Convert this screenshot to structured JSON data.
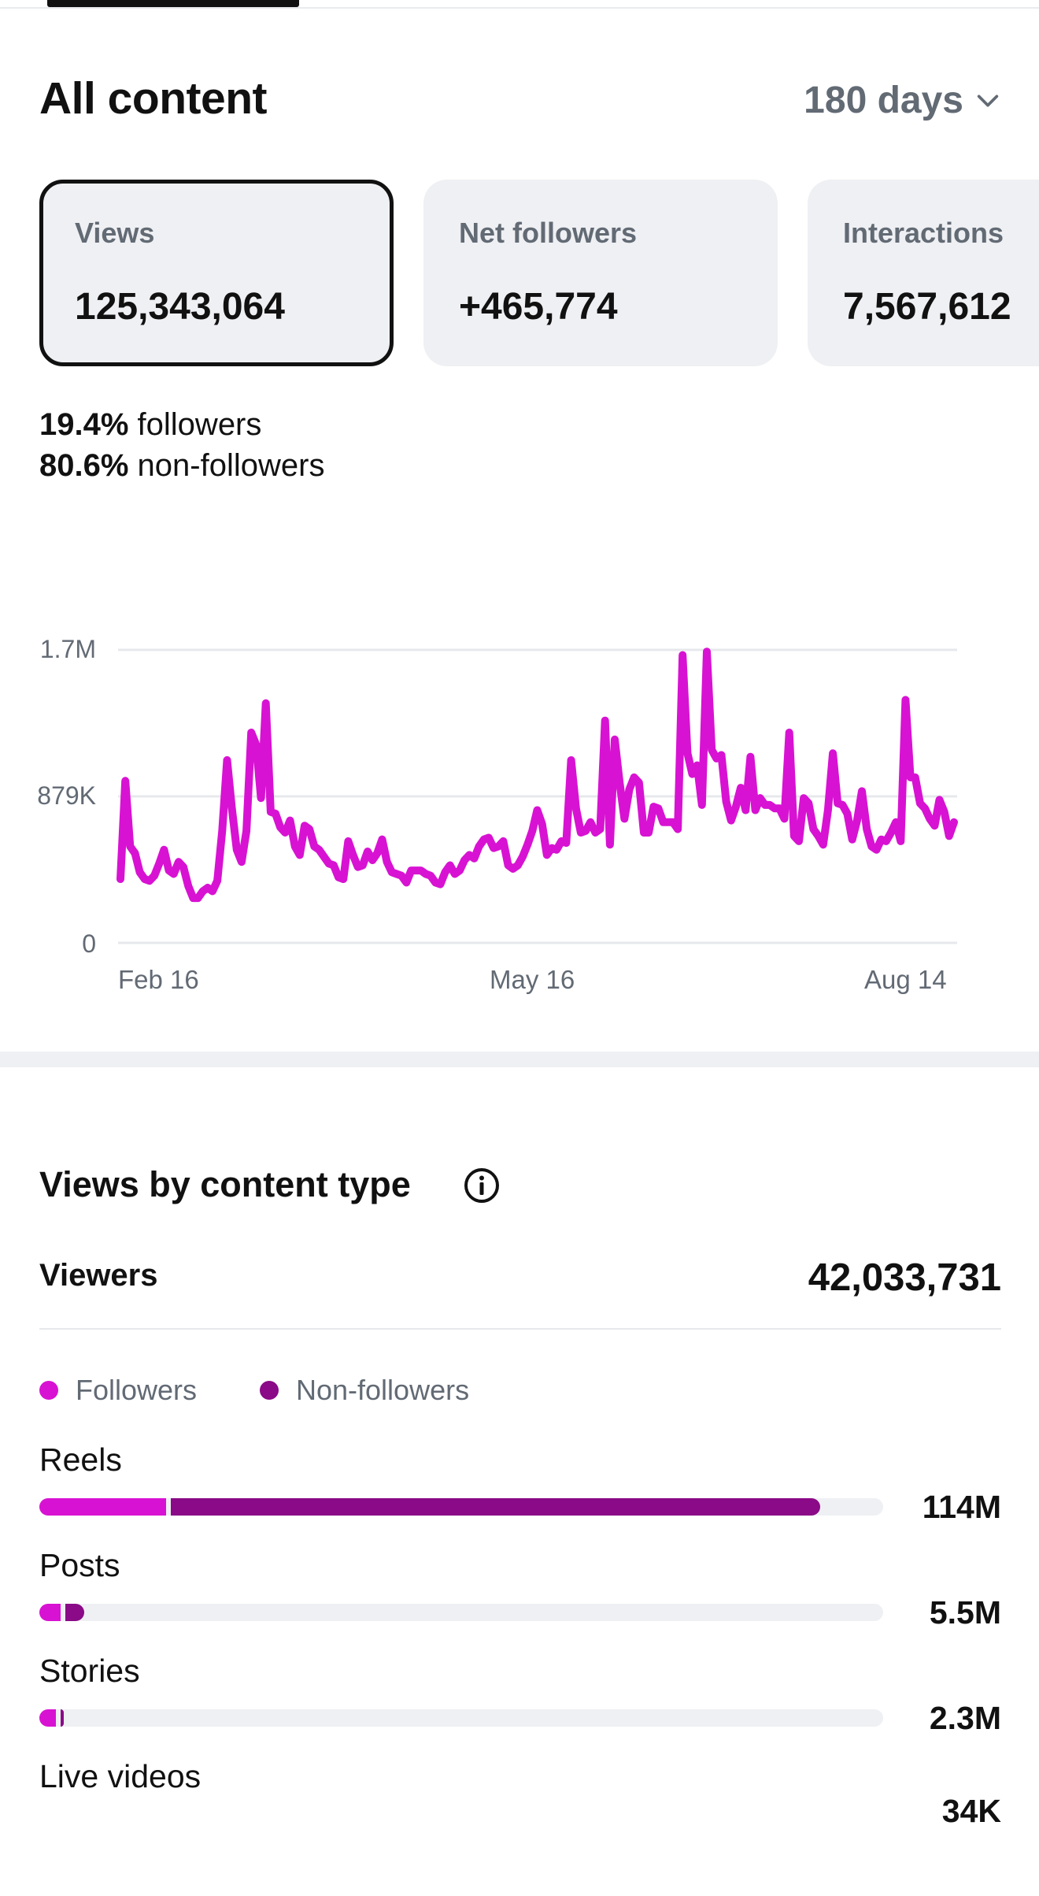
{
  "header": {
    "title": "All content",
    "range_label": "180 days"
  },
  "metrics": [
    {
      "label": "Views",
      "value": "125,343,064",
      "selected": true
    },
    {
      "label": "Net followers",
      "value": "+465,774",
      "selected": false
    },
    {
      "label": "Interactions",
      "value": "7,567,612",
      "selected": false
    }
  ],
  "audience_split": {
    "followers_pct": "19.4%",
    "followers_label": "followers",
    "non_followers_pct": "80.6%",
    "non_followers_label": "non-followers"
  },
  "chart_data": {
    "type": "line",
    "title": "",
    "xlabel": "",
    "ylabel": "",
    "x_tick_labels": [
      "Feb 16",
      "May 16",
      "Aug 14"
    ],
    "y_tick_labels": [
      "1.7M",
      "879K",
      "0"
    ],
    "ylim": [
      0,
      1700000
    ],
    "grid": true,
    "color": "#d812d2",
    "series": [
      {
        "values": [
          370000,
          940000,
          560000,
          520000,
          410000,
          370000,
          360000,
          390000,
          460000,
          540000,
          420000,
          400000,
          470000,
          440000,
          330000,
          260000,
          260000,
          300000,
          320000,
          300000,
          360000,
          650000,
          1060000,
          780000,
          540000,
          470000,
          650000,
          1220000,
          1150000,
          840000,
          1390000,
          760000,
          750000,
          670000,
          640000,
          710000,
          560000,
          510000,
          680000,
          660000,
          560000,
          540000,
          500000,
          460000,
          450000,
          380000,
          370000,
          590000,
          510000,
          440000,
          450000,
          530000,
          480000,
          520000,
          600000,
          470000,
          410000,
          400000,
          390000,
          350000,
          420000,
          420000,
          420000,
          400000,
          390000,
          350000,
          340000,
          410000,
          450000,
          400000,
          420000,
          480000,
          510000,
          490000,
          560000,
          600000,
          610000,
          550000,
          560000,
          590000,
          450000,
          430000,
          450000,
          500000,
          570000,
          650000,
          770000,
          690000,
          510000,
          550000,
          540000,
          590000,
          580000,
          1060000,
          780000,
          640000,
          650000,
          700000,
          640000,
          660000,
          1290000,
          570000,
          1180000,
          930000,
          720000,
          890000,
          960000,
          930000,
          640000,
          640000,
          790000,
          780000,
          700000,
          700000,
          700000,
          660000,
          1670000,
          1100000,
          980000,
          1030000,
          800000,
          1690000,
          1120000,
          1070000,
          1090000,
          820000,
          710000,
          790000,
          900000,
          770000,
          1080000,
          770000,
          840000,
          800000,
          800000,
          780000,
          780000,
          720000,
          1220000,
          620000,
          590000,
          840000,
          810000,
          660000,
          620000,
          570000,
          770000,
          1100000,
          810000,
          800000,
          750000,
          600000,
          710000,
          880000,
          660000,
          560000,
          540000,
          600000,
          590000,
          640000,
          700000,
          590000,
          1410000,
          960000,
          960000,
          810000,
          780000,
          720000,
          680000,
          830000,
          760000,
          620000,
          700000
        ],
        "x_start": "Feb 16",
        "x_end": "Aug 14"
      }
    ]
  },
  "content_type": {
    "title": "Views by content type",
    "viewers_label": "Viewers",
    "viewers_value": "42,033,731",
    "legend": [
      {
        "label": "Followers",
        "color": "#d812d2"
      },
      {
        "label": "Non-followers",
        "color": "#8a0a87"
      }
    ],
    "items": [
      {
        "label": "Reels",
        "value": "114M",
        "followers_fraction": 0.15,
        "non_followers_fraction": 0.77
      },
      {
        "label": "Posts",
        "value": "5.5M",
        "followers_fraction": 0.025,
        "non_followers_fraction": 0.023
      },
      {
        "label": "Stories",
        "value": "2.3M",
        "followers_fraction": 0.02,
        "non_followers_fraction": 0.003
      },
      {
        "label": "Live videos",
        "value": "34K",
        "followers_fraction": 0,
        "non_followers_fraction": 0
      }
    ]
  }
}
